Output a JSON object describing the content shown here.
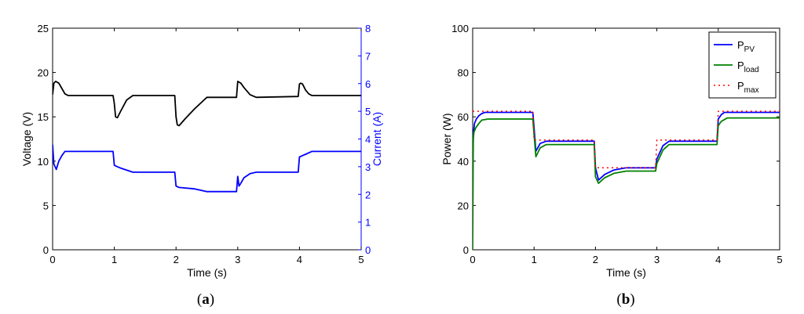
{
  "chart_data": [
    {
      "type": "line",
      "panel_label_open": "(",
      "panel_label_letter": "a",
      "panel_label_close": ")",
      "xlabel": "Time (s)",
      "ylabel_left": "Voltage (V)",
      "ylabel_right": "Current (A)",
      "xlim": [
        0,
        5
      ],
      "ylim_left": [
        0,
        25
      ],
      "ylim_right": [
        0,
        8
      ],
      "xticks": [
        0,
        1,
        2,
        3,
        4,
        5
      ],
      "yticks_left": [
        0,
        5,
        10,
        15,
        20,
        25
      ],
      "yticks_right": [
        0,
        1,
        2,
        3,
        4,
        5,
        6,
        7,
        8
      ],
      "grid": false,
      "series": [
        {
          "axis": "left",
          "color": "#000000",
          "x": [
            0.0,
            0.02,
            0.05,
            0.1,
            0.15,
            0.2,
            0.25,
            0.98,
            1.0,
            1.02,
            1.05,
            1.1,
            1.2,
            1.3,
            1.98,
            2.0,
            2.02,
            2.05,
            2.15,
            2.3,
            2.5,
            2.98,
            3.0,
            3.05,
            3.1,
            3.2,
            3.3,
            3.98,
            4.0,
            4.02,
            4.05,
            4.1,
            4.15,
            4.2,
            5.0
          ],
          "y": [
            17.5,
            18.8,
            19.0,
            18.8,
            18.2,
            17.6,
            17.4,
            17.4,
            16.5,
            15.0,
            14.9,
            15.6,
            16.9,
            17.4,
            17.4,
            15.0,
            14.1,
            14.0,
            14.8,
            15.9,
            17.2,
            17.2,
            19.0,
            18.8,
            18.3,
            17.5,
            17.2,
            17.3,
            18.7,
            18.8,
            18.7,
            18.0,
            17.6,
            17.4,
            17.4
          ]
        },
        {
          "axis": "right",
          "color": "#0000ff",
          "x": [
            0.0,
            0.02,
            0.06,
            0.1,
            0.15,
            0.2,
            0.3,
            0.98,
            1.0,
            1.05,
            1.1,
            1.3,
            1.98,
            2.0,
            2.05,
            2.3,
            2.5,
            2.98,
            3.0,
            3.02,
            3.05,
            3.1,
            3.2,
            3.3,
            3.98,
            4.0,
            4.05,
            4.1,
            4.2,
            5.0
          ],
          "y": [
            3.8,
            3.1,
            2.9,
            3.2,
            3.4,
            3.55,
            3.55,
            3.55,
            3.05,
            3.0,
            2.95,
            2.8,
            2.8,
            2.3,
            2.25,
            2.2,
            2.1,
            2.1,
            2.65,
            2.3,
            2.4,
            2.6,
            2.75,
            2.8,
            2.8,
            3.35,
            3.4,
            3.45,
            3.55,
            3.55
          ]
        }
      ]
    },
    {
      "type": "line",
      "panel_label_open": "(",
      "panel_label_letter": "b",
      "panel_label_close": ")",
      "xlabel": "Time (s)",
      "ylabel": "Power (W)",
      "xlim": [
        0,
        5
      ],
      "ylim": [
        0,
        100
      ],
      "xticks": [
        0,
        1,
        2,
        3,
        4,
        5
      ],
      "yticks": [
        0,
        20,
        40,
        60,
        80,
        100
      ],
      "grid": false,
      "legend_position": "top-right",
      "series": [
        {
          "name_main": "P",
          "name_sub": "PV",
          "color": "#0000ff",
          "style": "solid",
          "x": [
            0.0,
            0.01,
            0.03,
            0.06,
            0.1,
            0.15,
            0.2,
            0.98,
            1.0,
            1.03,
            1.1,
            1.2,
            1.98,
            2.0,
            2.05,
            2.15,
            2.3,
            2.5,
            2.98,
            3.0,
            3.05,
            3.1,
            3.2,
            3.98,
            4.0,
            4.05,
            4.1,
            5.0
          ],
          "y": [
            31.0,
            52.0,
            57.0,
            59.0,
            60.5,
            61.5,
            62.0,
            62.0,
            55.0,
            44.5,
            48.0,
            49.0,
            49.0,
            37.0,
            31.5,
            34.0,
            36.0,
            37.0,
            37.0,
            41.0,
            44.0,
            47.0,
            49.0,
            49.0,
            59.0,
            61.0,
            62.0,
            62.0
          ]
        },
        {
          "name_main": "P",
          "name_sub": "load",
          "color": "#008000",
          "style": "solid",
          "x": [
            0.0,
            0.01,
            0.02,
            0.05,
            0.1,
            0.15,
            0.25,
            0.98,
            1.0,
            1.03,
            1.1,
            1.2,
            1.98,
            2.0,
            2.05,
            2.15,
            2.3,
            2.5,
            2.98,
            3.0,
            3.05,
            3.1,
            3.2,
            3.98,
            4.0,
            4.05,
            4.15,
            5.0
          ],
          "y": [
            0.0,
            50.0,
            53.0,
            55.0,
            57.0,
            58.5,
            59.0,
            59.0,
            52.0,
            42.0,
            46.0,
            47.5,
            47.5,
            33.0,
            30.0,
            32.5,
            34.5,
            35.5,
            35.5,
            39.0,
            42.0,
            45.0,
            47.5,
            47.5,
            56.0,
            58.0,
            59.5,
            59.5
          ]
        },
        {
          "name_main": "P",
          "name_sub": "max",
          "color": "#ff0000",
          "style": "dotted",
          "x": [
            0.0,
            0.01,
            0.98,
            1.0,
            1.98,
            2.0,
            2.98,
            3.0,
            3.98,
            4.0,
            5.0
          ],
          "y": [
            62.5,
            62.5,
            62.5,
            49.5,
            49.5,
            37.0,
            37.0,
            49.5,
            49.5,
            62.5,
            62.5
          ]
        }
      ]
    }
  ]
}
